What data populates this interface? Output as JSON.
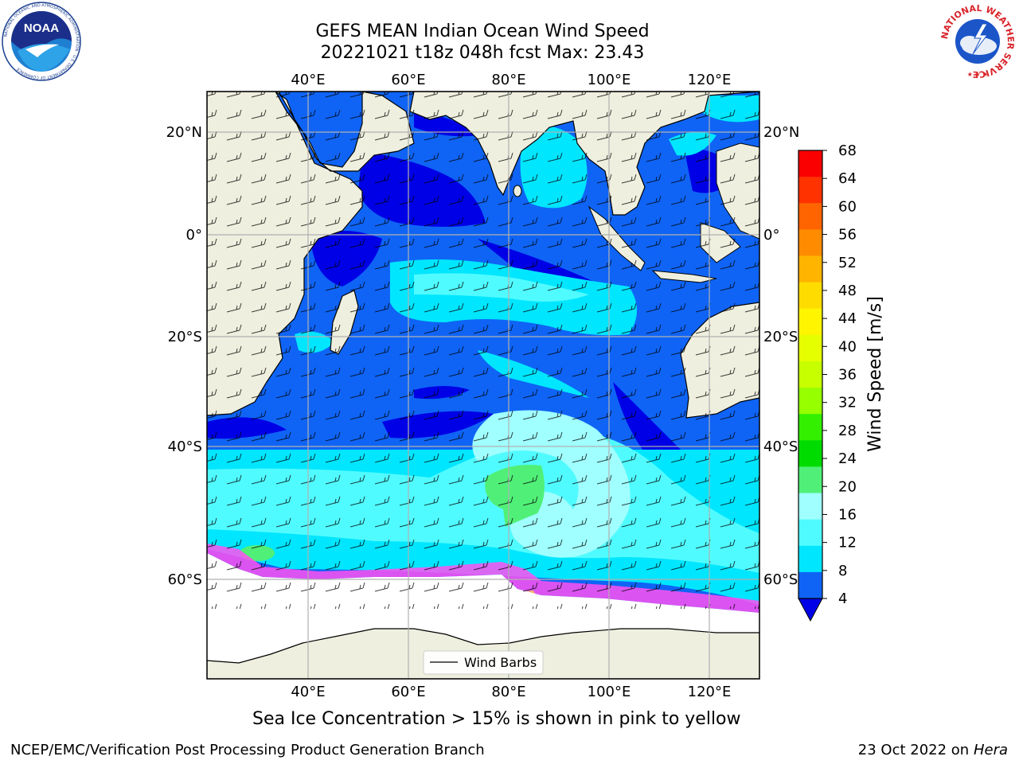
{
  "header": {
    "title_line1": "GEFS MEAN Indian Ocean Wind Speed",
    "title_line2": "20221021 t18z 048h fcst   Max: 23.43"
  },
  "logos": {
    "left": {
      "name": "noaa-logo",
      "text": "NOAA",
      "ring_text": "NATIONAL OCEANIC AND ATMOSPHERIC ADMINISTRATION · U.S. DEPARTMENT OF COMMERCE"
    },
    "right": {
      "name": "nws-logo",
      "ring_text": "NATIONAL WEATHER SERVICE"
    }
  },
  "map": {
    "lon_labels": [
      "40°E",
      "60°E",
      "80°E",
      "100°E",
      "120°E"
    ],
    "lat_labels": [
      "20°N",
      "0°",
      "20°S",
      "40°S",
      "60°S"
    ],
    "legend_label": "Wind Barbs",
    "colors": {
      "land": "#efefdf",
      "ocean_deep": "#0000e6",
      "ocean_blue": "#0f64f5",
      "ocean_cyan": "#00e6ff",
      "ocean_light": "#50fbff",
      "ocean_pale": "#a0ffff",
      "max_green": "#50f078",
      "sea_ice": "#ff50f0"
    }
  },
  "colorbar": {
    "label": "Wind Speed [m/s]",
    "ticks": [
      "68",
      "64",
      "60",
      "56",
      "52",
      "48",
      "44",
      "40",
      "36",
      "32",
      "28",
      "24",
      "20",
      "16",
      "12",
      "8",
      "4"
    ],
    "colors": [
      "#fa0000",
      "#ff3200",
      "#ff6400",
      "#ff8c00",
      "#ffb400",
      "#ffdc00",
      "#fff500",
      "#e6ff00",
      "#c8ff00",
      "#96ff00",
      "#32f000",
      "#00dc00",
      "#50f078",
      "#a0ffff",
      "#50fbff",
      "#00e6ff",
      "#0f64f5"
    ],
    "extend_color": "#0000e6"
  },
  "footer": {
    "ice_note": "Sea Ice Concentration > 15% is shown in pink to yellow",
    "branch": "NCEP/EMC/Verification Post Processing Product Generation Branch",
    "date_prefix": "23 Oct 2022 on",
    "machine": "Hera"
  }
}
